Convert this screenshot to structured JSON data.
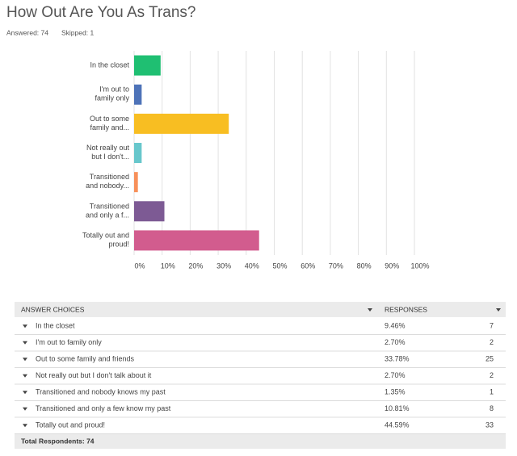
{
  "header": {
    "answered": "Answered: 74",
    "skipped": "Skipped: 1"
  },
  "chart_data": {
    "type": "barh",
    "title": "How Out Are You As Trans?",
    "categories": [
      "In the closet",
      "I'm out to family only",
      "Out to some family and...",
      "Not really out but I don't...",
      "Transitioned and nobody...",
      "Transitioned and only a f...",
      "Totally out and proud!"
    ],
    "values": [
      9.46,
      2.7,
      33.78,
      2.7,
      1.35,
      10.81,
      44.59
    ],
    "colors": [
      "#1fbf72",
      "#4e73b8",
      "#f8be22",
      "#68c7cc",
      "#f7905a",
      "#7d5a94",
      "#d25c8e"
    ],
    "xlim": [
      0,
      100
    ],
    "xticks": [
      {
        "value": 0,
        "label": "0%"
      },
      {
        "value": 10,
        "label": "10%"
      },
      {
        "value": 20,
        "label": "20%"
      },
      {
        "value": 30,
        "label": "30%"
      },
      {
        "value": 40,
        "label": "40%"
      },
      {
        "value": 50,
        "label": "50%"
      },
      {
        "value": 60,
        "label": "60%"
      },
      {
        "value": 70,
        "label": "70%"
      },
      {
        "value": 80,
        "label": "80%"
      },
      {
        "value": 90,
        "label": "90%"
      },
      {
        "value": 100,
        "label": "100%"
      }
    ],
    "grid": true
  },
  "table": {
    "columns": [
      "ANSWER CHOICES",
      "RESPONSES"
    ],
    "rows": [
      [
        "In the closet",
        "9.46%",
        7
      ],
      [
        "I'm out to family only",
        "2.70%",
        2
      ],
      [
        "Out to some family and friends",
        "33.78%",
        25
      ],
      [
        "Not really out but I don't talk about it",
        "2.70%",
        2
      ],
      [
        "Transitioned and nobody knows my past",
        "1.35%",
        1
      ],
      [
        "Transitioned and only a few know my past",
        "10.81%",
        8
      ],
      [
        "Totally out and proud!",
        "44.59%",
        33
      ]
    ],
    "footer": "Total Respondents: 74"
  }
}
